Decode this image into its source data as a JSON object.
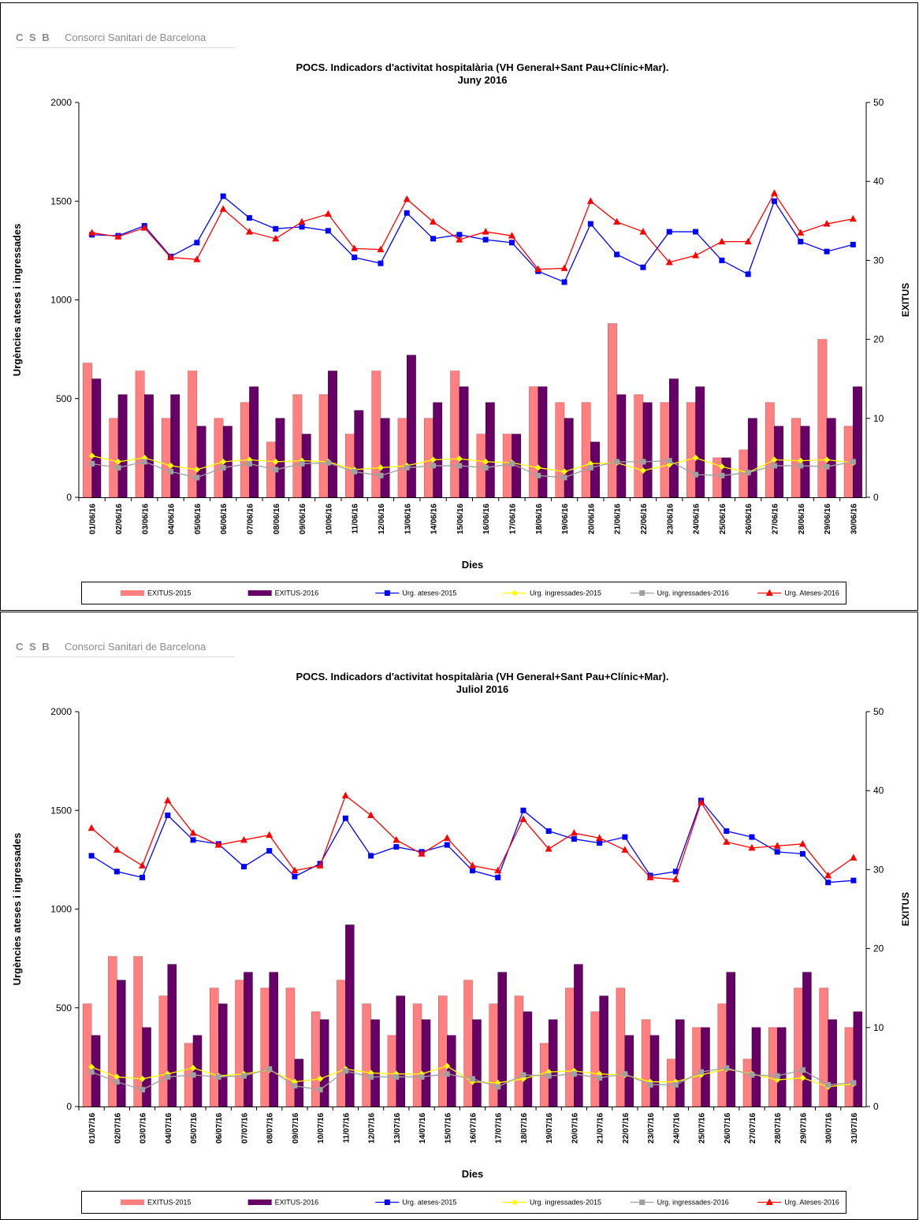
{
  "chart_data": [
    {
      "type": "combo",
      "logo": "C S B",
      "logo_text": "Consorci Sanitari de Barcelona",
      "title": "POCS.  Indicadors d'activitat hospitalària (VH General+Sant Pau+Clínic+Mar).",
      "subtitle": "Juny 2016",
      "x_label": "Dies",
      "y_label": "Urgències ateses i ingressades",
      "y2_label": "EXITUS",
      "ylim": [
        0,
        2000
      ],
      "yticks": [
        0,
        500,
        1000,
        1500,
        2000
      ],
      "y2lim": [
        0,
        50
      ],
      "y2ticks": [
        0,
        10,
        20,
        30,
        40,
        50
      ],
      "categories": [
        "01/06/16",
        "02/06/16",
        "03/06/16",
        "04/06/16",
        "05/06/16",
        "06/06/16",
        "07/06/16",
        "08/06/16",
        "09/06/16",
        "10/06/16",
        "11/06/16",
        "12/06/16",
        "13/06/16",
        "14/06/16",
        "15/06/16",
        "16/06/16",
        "17/06/16",
        "18/06/16",
        "19/06/16",
        "20/06/16",
        "21/06/16",
        "22/06/16",
        "23/06/16",
        "24/06/16",
        "25/06/16",
        "26/06/16",
        "27/06/16",
        "28/06/16",
        "29/06/16",
        "30/06/16"
      ],
      "series": [
        {
          "name": "EXITUS-2015",
          "type": "bar",
          "axis": "y2",
          "color": "#ff8080",
          "values": [
            17,
            10,
            16,
            10,
            16,
            10,
            12,
            7,
            13,
            13,
            8,
            16,
            10,
            10,
            16,
            8,
            8,
            14,
            12,
            12,
            22,
            13,
            12,
            12,
            5,
            6,
            12,
            10,
            20,
            9
          ]
        },
        {
          "name": "EXITUS-2016",
          "type": "bar",
          "axis": "y2",
          "color": "#660066",
          "values": [
            15,
            13,
            13,
            13,
            9,
            9,
            14,
            10,
            8,
            16,
            11,
            10,
            18,
            12,
            14,
            12,
            8,
            14,
            10,
            7,
            13,
            12,
            15,
            14,
            5,
            10,
            9,
            9,
            10,
            14
          ]
        },
        {
          "name": "Urg. ateses-2015",
          "type": "line",
          "marker": "square",
          "color": "#0000ff",
          "values": [
            1330,
            1325,
            1375,
            1220,
            1290,
            1525,
            1415,
            1360,
            1370,
            1350,
            1215,
            1185,
            1440,
            1310,
            1330,
            1305,
            1290,
            1145,
            1090,
            1385,
            1230,
            1165,
            1345,
            1345,
            1200,
            1130,
            1500,
            1295,
            1245,
            1280
          ]
        },
        {
          "name": "Urg. ingressades-2015",
          "type": "line",
          "marker": "diamond",
          "color": "#ffff00",
          "values": [
            210,
            180,
            200,
            160,
            140,
            180,
            190,
            180,
            185,
            180,
            140,
            150,
            160,
            190,
            195,
            180,
            175,
            150,
            130,
            170,
            175,
            135,
            165,
            200,
            155,
            125,
            190,
            185,
            190,
            175
          ]
        },
        {
          "name": "Urg. ingressades-2016",
          "type": "line",
          "marker": "square",
          "color": "#a0a0a0",
          "values": [
            170,
            150,
            180,
            130,
            100,
            150,
            170,
            140,
            170,
            175,
            130,
            110,
            150,
            160,
            160,
            150,
            170,
            110,
            100,
            150,
            180,
            180,
            185,
            115,
            110,
            125,
            160,
            160,
            155,
            180
          ]
        },
        {
          "name": "Urg. Ateses-2016",
          "type": "line",
          "marker": "triangle",
          "color": "#ff0000",
          "values": [
            1340,
            1320,
            1365,
            1215,
            1205,
            1460,
            1345,
            1310,
            1395,
            1435,
            1260,
            1255,
            1510,
            1395,
            1305,
            1345,
            1325,
            1155,
            1160,
            1500,
            1395,
            1345,
            1190,
            1225,
            1295,
            1295,
            1540,
            1340,
            1385,
            1410
          ]
        }
      ]
    },
    {
      "type": "combo",
      "logo": "C S B",
      "logo_text": "Consorci Sanitari de Barcelona",
      "title": "POCS.  Indicadors d'activitat hospitalària (VH General+Sant Pau+Clínic+Mar).",
      "subtitle": "Juliol 2016",
      "x_label": "Dies",
      "y_label": "Urgències ateses i ingressades",
      "y2_label": "EXITUS",
      "ylim": [
        0,
        2000
      ],
      "yticks": [
        0,
        500,
        1000,
        1500,
        2000
      ],
      "y2lim": [
        0,
        50
      ],
      "y2ticks": [
        0,
        10,
        20,
        30,
        40,
        50
      ],
      "categories": [
        "01/07/16",
        "02/07/16",
        "03/07/16",
        "04/07/16",
        "05/07/16",
        "06/07/16",
        "07/07/16",
        "08/07/16",
        "09/07/16",
        "10/07/16",
        "11/07/16",
        "12/07/16",
        "13/07/16",
        "14/07/16",
        "15/07/16",
        "16/07/16",
        "17/07/16",
        "18/07/16",
        "19/07/16",
        "20/07/16",
        "21/07/16",
        "22/07/16",
        "23/07/16",
        "24/07/16",
        "25/07/16",
        "26/07/16",
        "27/07/16",
        "28/07/16",
        "29/07/16",
        "30/07/16",
        "31/07/16"
      ],
      "series": [
        {
          "name": "EXITUS-2015",
          "type": "bar",
          "axis": "y2",
          "color": "#ff8080",
          "values": [
            13,
            19,
            19,
            14,
            8,
            15,
            16,
            15,
            15,
            12,
            16,
            13,
            9,
            13,
            14,
            16,
            13,
            14,
            8,
            15,
            12,
            15,
            11,
            6,
            10,
            13,
            6,
            10,
            15,
            15,
            10
          ]
        },
        {
          "name": "EXITUS-2016",
          "type": "bar",
          "axis": "y2",
          "color": "#660066",
          "values": [
            9,
            16,
            10,
            18,
            9,
            13,
            17,
            17,
            6,
            11,
            23,
            11,
            14,
            11,
            9,
            11,
            17,
            12,
            11,
            18,
            14,
            9,
            9,
            11,
            10,
            17,
            10,
            10,
            17,
            11,
            12
          ]
        },
        {
          "name": "Urg. ateses-2015",
          "type": "line",
          "marker": "square",
          "color": "#0000ff",
          "values": [
            1270,
            1190,
            1160,
            1475,
            1350,
            1330,
            1215,
            1295,
            1165,
            1230,
            1460,
            1270,
            1315,
            1290,
            1325,
            1195,
            1160,
            1500,
            1395,
            1355,
            1335,
            1365,
            1170,
            1190,
            1550,
            1395,
            1365,
            1290,
            1280,
            1135,
            1145
          ]
        },
        {
          "name": "Urg. ingressades-2015",
          "type": "line",
          "marker": "diamond",
          "color": "#ffff00",
          "values": [
            200,
            150,
            140,
            165,
            195,
            155,
            165,
            185,
            125,
            140,
            190,
            170,
            165,
            165,
            205,
            125,
            120,
            140,
            175,
            180,
            165,
            160,
            125,
            125,
            160,
            190,
            165,
            135,
            145,
            100,
            115
          ]
        },
        {
          "name": "Urg. ingressades-2016",
          "type": "line",
          "marker": "square",
          "color": "#a0a0a0",
          "values": [
            175,
            125,
            85,
            150,
            160,
            150,
            155,
            190,
            105,
            85,
            180,
            150,
            150,
            150,
            165,
            140,
            100,
            160,
            155,
            165,
            145,
            165,
            110,
            110,
            175,
            195,
            160,
            155,
            185,
            110,
            120
          ]
        },
        {
          "name": "Urg. Ateses-2016",
          "type": "line",
          "marker": "triangle",
          "color": "#ff0000",
          "values": [
            1410,
            1300,
            1220,
            1550,
            1385,
            1325,
            1350,
            1375,
            1195,
            1220,
            1575,
            1475,
            1350,
            1280,
            1360,
            1220,
            1195,
            1455,
            1305,
            1385,
            1360,
            1300,
            1160,
            1150,
            1540,
            1340,
            1310,
            1320,
            1330,
            1170,
            1260
          ]
        }
      ]
    }
  ]
}
